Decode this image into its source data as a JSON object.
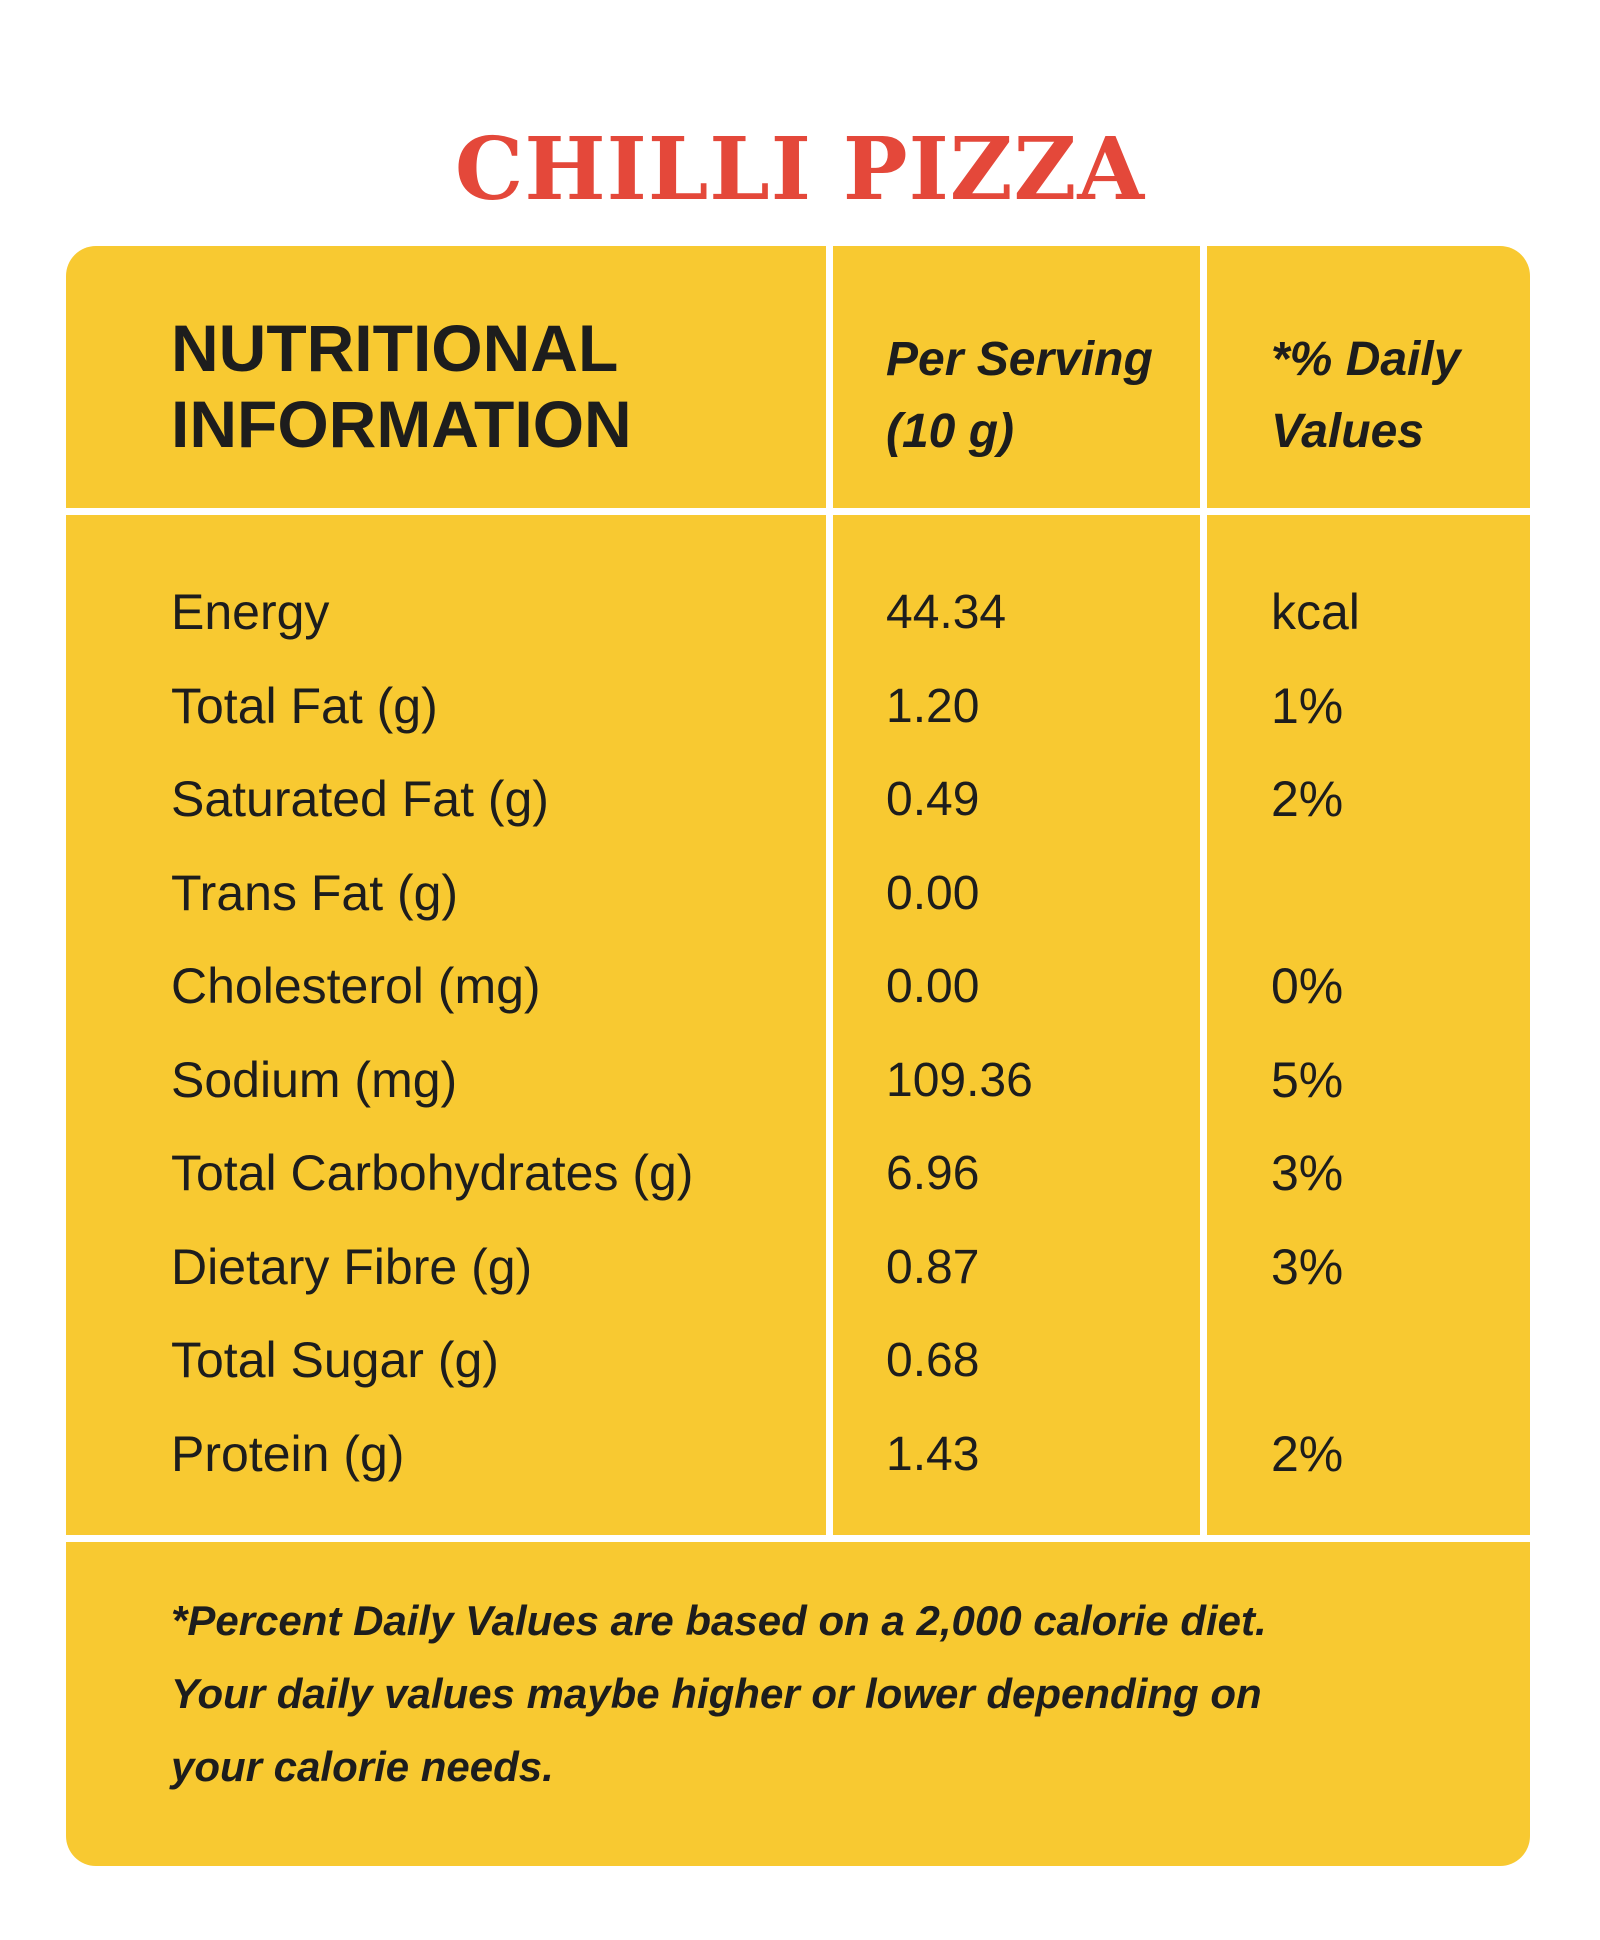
{
  "title": "CHILLI PIZZA",
  "header": {
    "main_line1": "NUTRITIONAL",
    "main_line2": "INFORMATION",
    "serving_line1": "Per Serving",
    "serving_line2": "(10 g)",
    "daily_line1": "*% Daily",
    "daily_line2": "Values"
  },
  "rows": [
    {
      "name": "Energy",
      "value": "44.34",
      "dv": "kcal"
    },
    {
      "name": "Total Fat (g)",
      "value": "1.20",
      "dv": "1%"
    },
    {
      "name": "Saturated Fat (g)",
      "value": "0.49",
      "dv": "2%"
    },
    {
      "name": "Trans Fat (g)",
      "value": "0.00",
      "dv": ""
    },
    {
      "name": "Cholesterol (mg)",
      "value": "0.00",
      "dv": "0%"
    },
    {
      "name": "Sodium (mg)",
      "value": "109.36",
      "dv": "5%"
    },
    {
      "name": "Total Carbohydrates (g)",
      "value": "6.96",
      "dv": "3%"
    },
    {
      "name": "Dietary Fibre (g)",
      "value": "0.87",
      "dv": "3%"
    },
    {
      "name": "Total Sugar (g)",
      "value": "0.68",
      "dv": ""
    },
    {
      "name": "Protein (g)",
      "value": "1.43",
      "dv": "2%"
    }
  ],
  "footnote": {
    "line1": "*Percent Daily Values are based on a 2,000 calorie diet.",
    "line2": "Your daily values maybe higher or lower depending on",
    "line3": "your calorie needs."
  },
  "colors": {
    "title": "#e4483a",
    "card": "#f8c931",
    "text": "#1d1d1d",
    "grid": "#ffffff"
  }
}
